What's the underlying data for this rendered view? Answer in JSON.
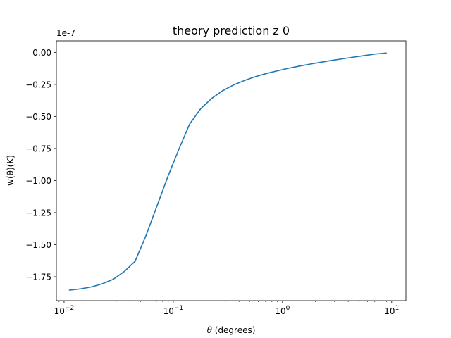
{
  "chart_data": {
    "type": "line",
    "title": "theory prediction z 0",
    "xlabel": "θ (degrees)",
    "ylabel": "w(θ)(K)",
    "xscale": "log",
    "xlim": [
      0.0085,
      13.5
    ],
    "ylim": [
      -1.937e-07,
      9e-09
    ],
    "y_offset_label": "1e-7",
    "x_ticks": [
      {
        "value": 0.01,
        "base": "10",
        "exp": "−2"
      },
      {
        "value": 0.1,
        "base": "10",
        "exp": "−1"
      },
      {
        "value": 1,
        "base": "10",
        "exp": "0"
      },
      {
        "value": 10,
        "base": "10",
        "exp": "1"
      }
    ],
    "y_ticks": [
      {
        "value": 0.0,
        "label": "0.00"
      },
      {
        "value": -2.5e-08,
        "label": "−0.25"
      },
      {
        "value": -5e-08,
        "label": "−0.50"
      },
      {
        "value": -7.5e-08,
        "label": "−0.75"
      },
      {
        "value": -1e-07,
        "label": "−1.00"
      },
      {
        "value": -1.25e-07,
        "label": "−1.25"
      },
      {
        "value": -1.5e-07,
        "label": "−1.50"
      },
      {
        "value": -1.75e-07,
        "label": "−1.75"
      }
    ],
    "series": [
      {
        "name": "w(theta)",
        "color": "#1f77b4",
        "x": [
          0.0112,
          0.0141,
          0.0178,
          0.0224,
          0.0282,
          0.0355,
          0.0447,
          0.0562,
          0.0708,
          0.0891,
          0.112,
          0.141,
          0.178,
          0.224,
          0.282,
          0.355,
          0.447,
          0.562,
          0.708,
          0.891,
          1.12,
          1.41,
          1.78,
          2.24,
          2.82,
          3.55,
          4.47,
          5.62,
          7.08,
          8.91
        ],
        "y": [
          -1.855e-07,
          -1.845e-07,
          -1.83e-07,
          -1.805e-07,
          -1.77e-07,
          -1.71e-07,
          -1.63e-07,
          -1.43e-07,
          -1.2e-07,
          -9.7e-08,
          -7.6e-08,
          -5.6e-08,
          -4.4e-08,
          -3.6e-08,
          -3e-08,
          -2.55e-08,
          -2.2e-08,
          -1.9e-08,
          -1.65e-08,
          -1.45e-08,
          -1.25e-08,
          -1.08e-08,
          -9.2e-09,
          -7.7e-09,
          -6.3e-09,
          -5e-09,
          -3.7e-09,
          -2.5e-09,
          -1.3e-09,
          -5e-10
        ]
      }
    ]
  }
}
